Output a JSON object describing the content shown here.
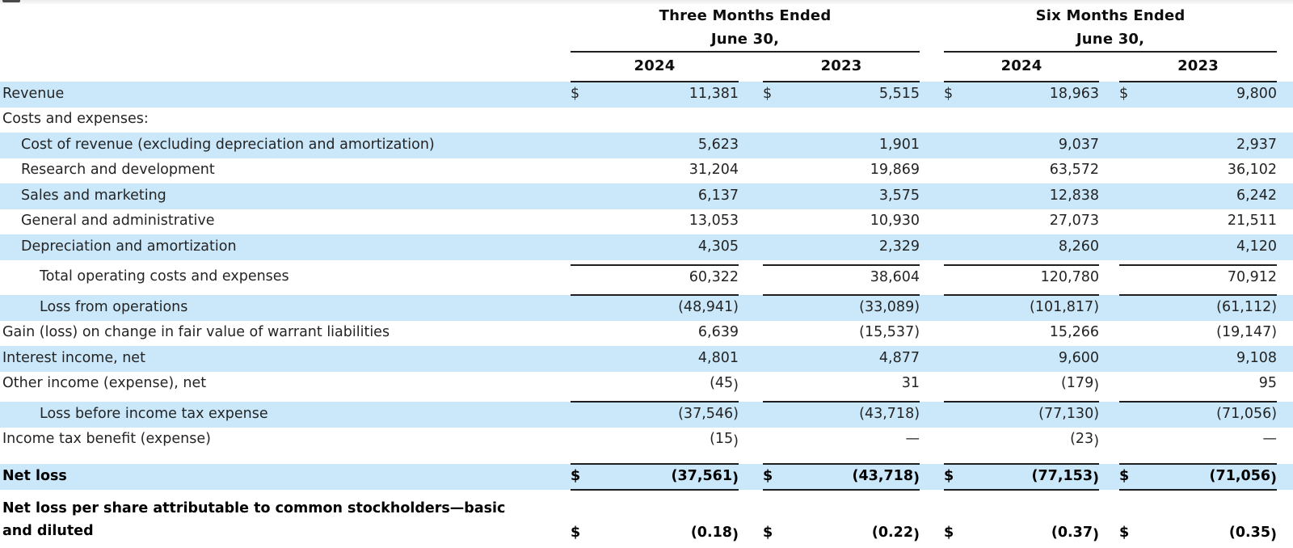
{
  "table": {
    "currency": "$",
    "header": {
      "groups": [
        {
          "title": "Three Months Ended",
          "subtitle": "June 30,",
          "years": [
            "2024",
            "2023"
          ]
        },
        {
          "title": "Six Months Ended",
          "subtitle": "June 30,",
          "years": [
            "2024",
            "2023"
          ]
        }
      ]
    },
    "rows": [
      {
        "label": "Revenue",
        "indent": 0,
        "shaded": true,
        "dollar": true,
        "values": [
          "11,381",
          "5,515",
          "18,963",
          "9,800"
        ]
      },
      {
        "label": "Costs and expenses:",
        "indent": 0,
        "shaded": false,
        "values": [
          "",
          "",
          "",
          ""
        ]
      },
      {
        "label": "Cost of revenue (excluding depreciation and amortization)",
        "indent": 1,
        "shaded": true,
        "values": [
          "5,623",
          "1,901",
          "9,037",
          "2,937"
        ]
      },
      {
        "label": "Research and development",
        "indent": 1,
        "shaded": false,
        "values": [
          "31,204",
          "19,869",
          "63,572",
          "36,102"
        ]
      },
      {
        "label": "Sales and marketing",
        "indent": 1,
        "shaded": true,
        "values": [
          "6,137",
          "3,575",
          "12,838",
          "6,242"
        ]
      },
      {
        "label": "General and administrative",
        "indent": 1,
        "shaded": false,
        "values": [
          "13,053",
          "10,930",
          "27,073",
          "21,511"
        ]
      },
      {
        "label": "Depreciation and amortization",
        "indent": 1,
        "shaded": true,
        "values": [
          "4,305",
          "2,329",
          "8,260",
          "4,120"
        ]
      },
      {
        "label": "Total operating costs and expenses",
        "indent": 2,
        "shaded": false,
        "rule_above": "normal",
        "values": [
          "60,322",
          "38,604",
          "120,780",
          "70,912"
        ]
      },
      {
        "label": "Loss from operations",
        "indent": 2,
        "shaded": true,
        "rule_above": "normal",
        "values": [
          "(48,941)",
          "(33,089)",
          "(101,817)",
          "(61,112)"
        ]
      },
      {
        "label": "Gain (loss) on change in fair value of warrant liabilities",
        "indent": 0,
        "shaded": false,
        "values": [
          "6,639",
          "(15,537)",
          "15,266",
          "(19,147)"
        ]
      },
      {
        "label": "Interest income, net",
        "indent": 0,
        "shaded": true,
        "values": [
          "4,801",
          "4,877",
          "9,600",
          "9,108"
        ]
      },
      {
        "label": "Other income (expense), net",
        "indent": 0,
        "shaded": false,
        "drop_paren": true,
        "values": [
          "(45)",
          "31",
          "(179)",
          "95"
        ]
      },
      {
        "label": "Loss before income tax expense",
        "indent": 2,
        "shaded": true,
        "rule_above": "normal",
        "values": [
          "(37,546)",
          "(43,718)",
          "(77,130)",
          "(71,056)"
        ]
      },
      {
        "label": "Income tax benefit (expense)",
        "indent": 0,
        "shaded": false,
        "drop_paren": true,
        "values": [
          "(15)",
          "—",
          "(23)",
          "—"
        ]
      },
      {
        "label": "Net loss",
        "indent": 0,
        "shaded": true,
        "bold": true,
        "dollar": true,
        "drop_paren": true,
        "rule_above": "tall",
        "rule_below": true,
        "values": [
          "(37,561)",
          "(43,718)",
          "(77,153)",
          "(71,056)"
        ]
      },
      {
        "label": "Net loss per share attributable to common stockholders—basic and diluted",
        "indent": 0,
        "shaded": false,
        "bold": true,
        "dollar": true,
        "drop_paren": true,
        "values": [
          "(0.18)",
          "(0.22)",
          "(0.37)",
          "(0.35)"
        ]
      }
    ]
  },
  "colors": {
    "row_shade": "#cbe8fa",
    "rule_line": "#1f1f1f"
  }
}
